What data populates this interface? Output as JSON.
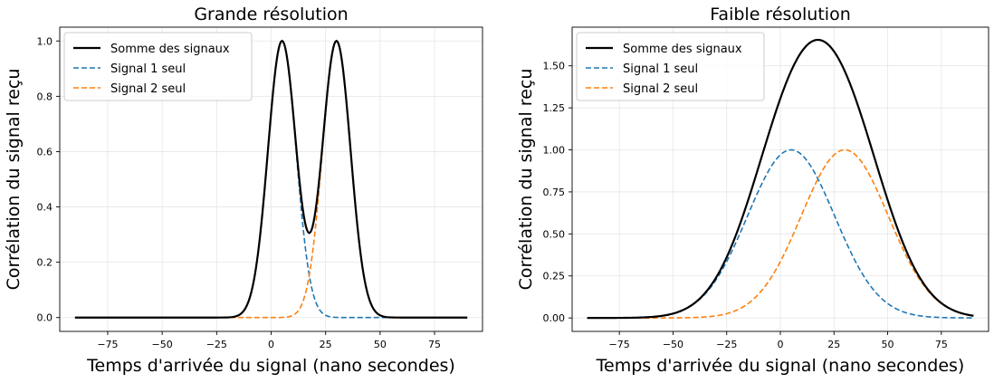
{
  "chart_data": [
    {
      "type": "line",
      "title": "Grande résolution",
      "xlabel": "Temps d'arrivée du signal (nano secondes)",
      "ylabel": "Corrélation du signal reçu",
      "xlim": [
        -97,
        97
      ],
      "ylim": [
        -0.05,
        1.05
      ],
      "xticks": [
        -75,
        -50,
        -25,
        0,
        25,
        50,
        75
      ],
      "xtick_labels": [
        "−75",
        "−50",
        "−25",
        "0",
        "25",
        "50",
        "75"
      ],
      "yticks": [
        0,
        0.2,
        0.4,
        0.6,
        0.8,
        1.0
      ],
      "ytick_labels": [
        "0.0",
        "0.2",
        "0.4",
        "0.6",
        "0.8",
        "1.0"
      ],
      "grid": true,
      "legend": "top-left",
      "x_range": [
        -90,
        90
      ],
      "series": [
        {
          "name": "Somme des signaux",
          "color": "#000000",
          "style": "solid",
          "centers": [
            5,
            30
          ],
          "sigma": 6.45
        },
        {
          "name": "Signal 1 seul",
          "color": "#1f77b4",
          "style": "dashed",
          "center": 5,
          "sigma": 6.45,
          "amplitude": 1.0
        },
        {
          "name": "Signal 2 seul",
          "color": "#ff7f0e",
          "style": "dashed",
          "center": 30,
          "sigma": 6.45,
          "amplitude": 1.0
        }
      ]
    },
    {
      "type": "line",
      "title": "Faible résolution",
      "xlabel": "Temps d'arrivée du signal (nano secondes)",
      "ylabel": "Corrélation du signal reçu",
      "xlim": [
        -97,
        97
      ],
      "ylim": [
        -0.08,
        1.73
      ],
      "xticks": [
        -75,
        -50,
        -25,
        0,
        25,
        50,
        75
      ],
      "xtick_labels": [
        "−75",
        "−50",
        "−25",
        "0",
        "25",
        "50",
        "75"
      ],
      "yticks": [
        0,
        0.25,
        0.5,
        0.75,
        1.0,
        1.25,
        1.5
      ],
      "ytick_labels": [
        "0.00",
        "0.25",
        "0.50",
        "0.75",
        "1.00",
        "1.25",
        "1.50"
      ],
      "grid": true,
      "legend": "top-left",
      "x_range": [
        -90,
        90
      ],
      "series": [
        {
          "name": "Somme des signaux",
          "color": "#000000",
          "style": "solid",
          "centers": [
            5,
            30
          ],
          "sigma": 20.3
        },
        {
          "name": "Signal 1 seul",
          "color": "#1f77b4",
          "style": "dashed",
          "center": 5,
          "sigma": 20.3,
          "amplitude": 1.0
        },
        {
          "name": "Signal 2 seul",
          "color": "#ff7f0e",
          "style": "dashed",
          "center": 30,
          "sigma": 20.3,
          "amplitude": 1.0
        }
      ]
    }
  ]
}
